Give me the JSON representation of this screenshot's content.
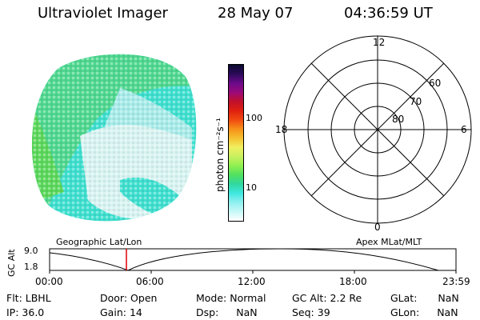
{
  "header": {
    "title": "Ultraviolet Imager",
    "date": "28 May 07",
    "time": "04:36:59 UT"
  },
  "colorbar": {
    "unit": "photon cm⁻²s⁻¹",
    "tick_labels": [
      "100",
      "10"
    ],
    "colors": [
      "#0a0a2e",
      "#2b0a5a",
      "#6a0a8a",
      "#9a0a7a",
      "#c0102a",
      "#e02010",
      "#f04a10",
      "#f7901a",
      "#f5c030",
      "#f0f060",
      "#c8f060",
      "#90f050",
      "#50e060",
      "#30d8a0",
      "#40e8e0",
      "#90f0f0",
      "#c8f8f8",
      "#ffffff"
    ]
  },
  "polar": {
    "labels": {
      "top": "12",
      "bottom": "0",
      "left": "18",
      "right": "6"
    },
    "ring_labels": [
      "60",
      "70",
      "80"
    ]
  },
  "timeline": {
    "left_label": "Geographic Lat/Lon",
    "right_label": "Apex MLat/MLT",
    "y_axis_title": "GC Alt",
    "y_ticks": [
      "9.0",
      "1.8"
    ],
    "x_ticks": [
      "00:00",
      "06:00",
      "12:00",
      "18:00",
      "23:59"
    ],
    "marker_color": "#e00000"
  },
  "info": {
    "row1": [
      {
        "label": "Flt:",
        "value": "LBHL"
      },
      {
        "label": "Door:",
        "value": "Open"
      },
      {
        "label": "Mode:",
        "value": "Normal"
      },
      {
        "label": "GC Alt:",
        "value": "2.2 Re"
      },
      {
        "label": "GLat:",
        "value": "NaN"
      }
    ],
    "row2": [
      {
        "label": "IP:",
        "value": "36.0"
      },
      {
        "label": "Gain:",
        "value": "14"
      },
      {
        "label": "Dsp:",
        "value": "NaN"
      },
      {
        "label": "Seq:",
        "value": "39"
      },
      {
        "label": "GLon:",
        "value": "NaN"
      }
    ]
  }
}
